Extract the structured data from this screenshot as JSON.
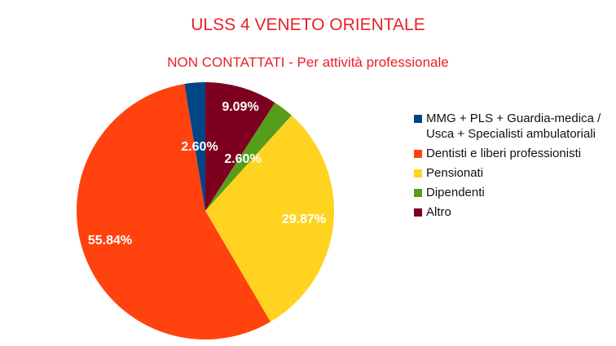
{
  "title": "ULSS 4 VENETO ORIENTALE",
  "subtitle": "NON CONTATTATI - Per attività professionale",
  "chart_data": {
    "type": "pie",
    "title": "ULSS 4 VENETO ORIENTALE",
    "subtitle": "NON CONTATTATI - Per attività professionale",
    "categories": [
      "Altro",
      "Dipendenti",
      "Pensionati",
      "Dentisti e liberi professionisti",
      "MMG + PLS + Guardia-medica / Usca + Specialisti ambulatoriali"
    ],
    "values": [
      9.09,
      2.6,
      29.87,
      55.84,
      2.6
    ],
    "labels": [
      "9.09%",
      "2.60%",
      "29.87%",
      "55.84%",
      "2.60%"
    ],
    "colors": [
      "#7e0021",
      "#579d1c",
      "#ffd320",
      "#ff420e",
      "#004586"
    ],
    "legend_position": "right"
  },
  "legend": {
    "items": [
      {
        "label": "MMG + PLS + Guardia-medica / Usca + Specialisti ambulatoriali",
        "color": "#004586"
      },
      {
        "label": "Dentisti e liberi professionisti",
        "color": "#ff420e"
      },
      {
        "label": "Pensionati",
        "color": "#ffd320"
      },
      {
        "label": "Dipendenti",
        "color": "#579d1c"
      },
      {
        "label": "Altro",
        "color": "#7e0021"
      }
    ]
  }
}
